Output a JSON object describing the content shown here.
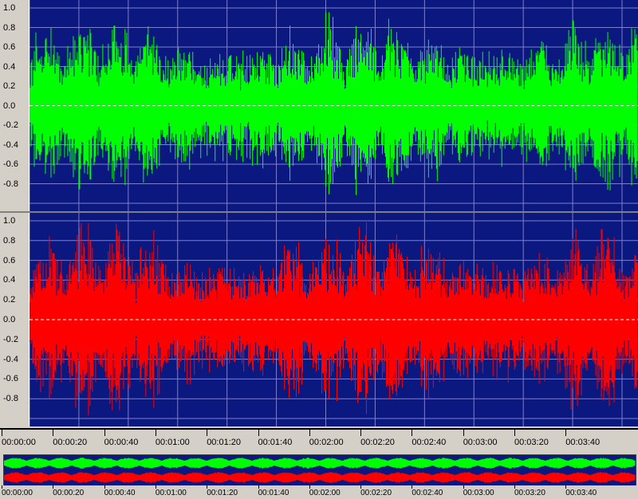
{
  "left_channel": {
    "color": "#00ff00",
    "y_ticks": [
      "1.0",
      "0.8",
      "0.6",
      "0.4",
      "0.2",
      "0.0",
      "-0.2",
      "-0.4",
      "-0.6",
      "-0.8"
    ]
  },
  "right_channel": {
    "color": "#ff0000",
    "y_ticks": [
      "1.0",
      "0.8",
      "0.6",
      "0.4",
      "0.2",
      "0.0",
      "-0.2",
      "-0.4",
      "-0.6",
      "-0.8"
    ]
  },
  "plot_background": "#0a1880",
  "grid_color": "#7f7fd0",
  "time_ticks": [
    "00:00:00",
    "00:00:20",
    "00:00:40",
    "00:01:00",
    "00:01:20",
    "00:01:40",
    "00:02:00",
    "00:02:20",
    "00:02:40",
    "00:03:00",
    "00:03:20",
    "00:03:40"
  ],
  "overview_ticks": [
    "00:00:00",
    "00:00:20",
    "00:00:40",
    "00:01:00",
    "00:01:20",
    "00:01:40",
    "00:02:00",
    "00:02:20",
    "00:02:40",
    "00:03:00",
    "00:03:20",
    "00:03:40"
  ]
}
